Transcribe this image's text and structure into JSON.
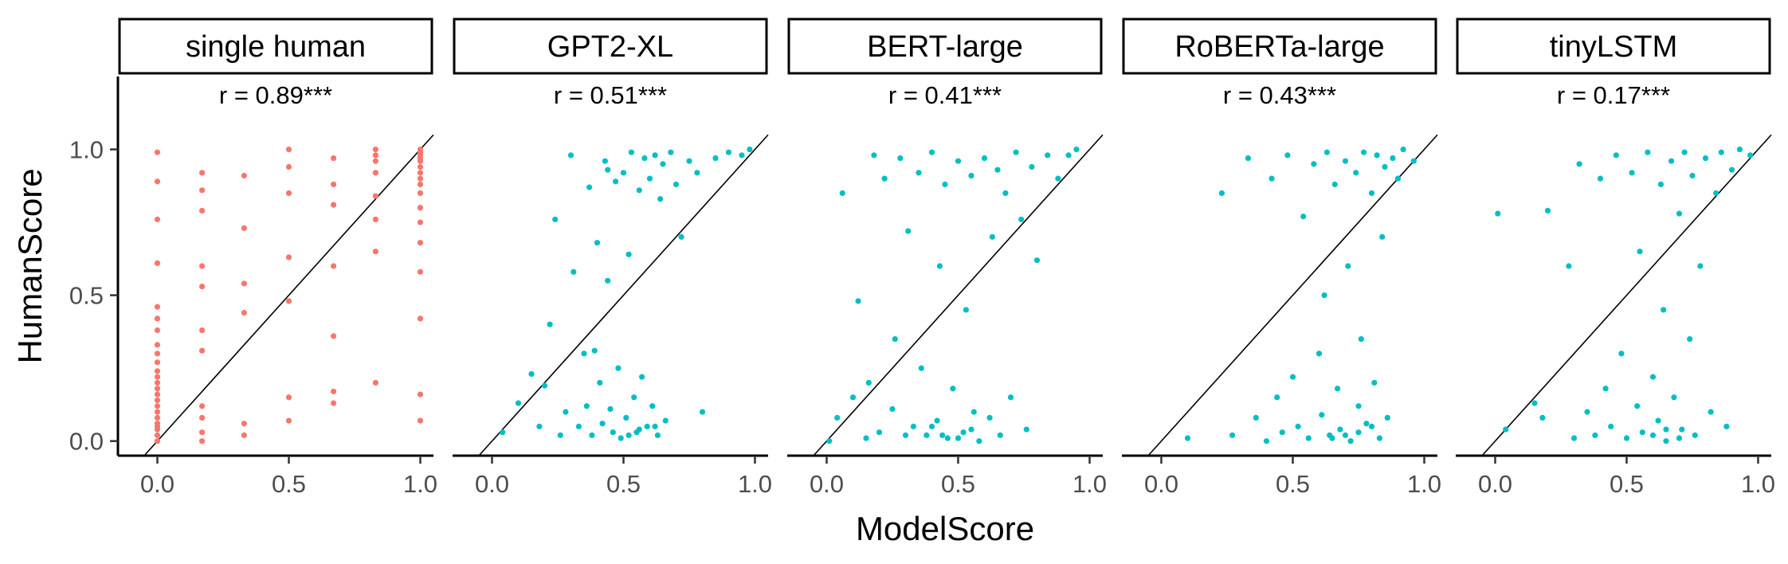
{
  "chart_data": {
    "type": "scatter",
    "layout": "facets",
    "xlabel": "ModelScore",
    "ylabel": "HumanScore",
    "xlim": [
      -0.15,
      1.05
    ],
    "ylim": [
      -0.05,
      1.25
    ],
    "x_ticks": [
      0.0,
      0.5,
      1.0
    ],
    "x_tick_labels": [
      "0.0",
      "0.5",
      "1.0"
    ],
    "y_ticks": [
      0.0,
      0.5,
      1.0
    ],
    "y_tick_labels": [
      "0.0",
      "0.5",
      "1.0"
    ],
    "reference_line": "y = x",
    "grid": false,
    "legend": "none",
    "panels": [
      {
        "label": "single human",
        "annotation": "r = 0.89***",
        "color": "#F8766D",
        "points": [
          [
            0.0,
            0.0
          ],
          [
            0.0,
            0.02
          ],
          [
            0.0,
            0.04
          ],
          [
            0.0,
            0.05
          ],
          [
            0.0,
            0.06
          ],
          [
            0.0,
            0.08
          ],
          [
            0.0,
            0.1
          ],
          [
            0.0,
            0.12
          ],
          [
            0.0,
            0.14
          ],
          [
            0.0,
            0.16
          ],
          [
            0.0,
            0.18
          ],
          [
            0.0,
            0.2
          ],
          [
            0.0,
            0.22
          ],
          [
            0.0,
            0.24
          ],
          [
            0.0,
            0.27
          ],
          [
            0.0,
            0.3
          ],
          [
            0.0,
            0.33
          ],
          [
            0.0,
            0.38
          ],
          [
            0.0,
            0.42
          ],
          [
            0.0,
            0.46
          ],
          [
            0.0,
            0.61
          ],
          [
            0.0,
            0.76
          ],
          [
            0.0,
            0.89
          ],
          [
            0.0,
            0.99
          ],
          [
            0.17,
            0.0
          ],
          [
            0.17,
            0.03
          ],
          [
            0.17,
            0.08
          ],
          [
            0.17,
            0.12
          ],
          [
            0.17,
            0.31
          ],
          [
            0.17,
            0.38
          ],
          [
            0.17,
            0.53
          ],
          [
            0.17,
            0.6
          ],
          [
            0.17,
            0.79
          ],
          [
            0.17,
            0.86
          ],
          [
            0.17,
            0.92
          ],
          [
            0.33,
            0.02
          ],
          [
            0.33,
            0.06
          ],
          [
            0.33,
            0.44
          ],
          [
            0.33,
            0.54
          ],
          [
            0.33,
            0.73
          ],
          [
            0.33,
            0.91
          ],
          [
            0.5,
            0.07
          ],
          [
            0.5,
            0.15
          ],
          [
            0.5,
            0.48
          ],
          [
            0.5,
            0.63
          ],
          [
            0.5,
            0.85
          ],
          [
            0.5,
            0.94
          ],
          [
            0.5,
            1.0
          ],
          [
            0.67,
            0.13
          ],
          [
            0.67,
            0.17
          ],
          [
            0.67,
            0.36
          ],
          [
            0.67,
            0.6
          ],
          [
            0.67,
            0.81
          ],
          [
            0.67,
            0.88
          ],
          [
            0.67,
            0.97
          ],
          [
            0.83,
            0.2
          ],
          [
            0.83,
            0.65
          ],
          [
            0.83,
            0.76
          ],
          [
            0.83,
            0.84
          ],
          [
            0.83,
            0.92
          ],
          [
            0.83,
            0.96
          ],
          [
            0.83,
            0.98
          ],
          [
            0.83,
            1.0
          ],
          [
            1.0,
            0.07
          ],
          [
            1.0,
            0.16
          ],
          [
            1.0,
            0.42
          ],
          [
            1.0,
            0.58
          ],
          [
            1.0,
            0.68
          ],
          [
            1.0,
            0.75
          ],
          [
            1.0,
            0.8
          ],
          [
            1.0,
            0.85
          ],
          [
            1.0,
            0.88
          ],
          [
            1.0,
            0.9
          ],
          [
            1.0,
            0.92
          ],
          [
            1.0,
            0.94
          ],
          [
            1.0,
            0.96
          ],
          [
            1.0,
            0.97
          ],
          [
            1.0,
            0.98
          ],
          [
            1.0,
            0.99
          ],
          [
            1.0,
            1.0
          ]
        ]
      },
      {
        "label": "GPT2-XL",
        "annotation": "r = 0.51***",
        "color": "#00BFC4",
        "points": [
          [
            0.04,
            0.03
          ],
          [
            0.1,
            0.13
          ],
          [
            0.15,
            0.23
          ],
          [
            0.18,
            0.05
          ],
          [
            0.2,
            0.19
          ],
          [
            0.22,
            0.4
          ],
          [
            0.24,
            0.76
          ],
          [
            0.26,
            0.02
          ],
          [
            0.28,
            0.1
          ],
          [
            0.3,
            0.98
          ],
          [
            0.31,
            0.58
          ],
          [
            0.33,
            0.05
          ],
          [
            0.35,
            0.3
          ],
          [
            0.36,
            0.12
          ],
          [
            0.37,
            0.87
          ],
          [
            0.38,
            0.02
          ],
          [
            0.39,
            0.31
          ],
          [
            0.4,
            0.68
          ],
          [
            0.41,
            0.2
          ],
          [
            0.42,
            0.06
          ],
          [
            0.43,
            0.96
          ],
          [
            0.44,
            0.55
          ],
          [
            0.45,
            0.11
          ],
          [
            0.46,
            0.03
          ],
          [
            0.47,
            0.89
          ],
          [
            0.48,
            0.25
          ],
          [
            0.49,
            0.01
          ],
          [
            0.5,
            0.92
          ],
          [
            0.51,
            0.08
          ],
          [
            0.52,
            0.64
          ],
          [
            0.53,
            0.99
          ],
          [
            0.54,
            0.15
          ],
          [
            0.55,
            0.03
          ],
          [
            0.56,
            0.86
          ],
          [
            0.57,
            0.22
          ],
          [
            0.58,
            0.97
          ],
          [
            0.59,
            0.05
          ],
          [
            0.6,
            0.9
          ],
          [
            0.61,
            0.12
          ],
          [
            0.62,
            0.98
          ],
          [
            0.63,
            0.02
          ],
          [
            0.64,
            0.83
          ],
          [
            0.65,
            0.95
          ],
          [
            0.66,
            0.07
          ],
          [
            0.68,
            0.99
          ],
          [
            0.7,
            0.88
          ],
          [
            0.72,
            0.7
          ],
          [
            0.75,
            0.96
          ],
          [
            0.78,
            0.92
          ],
          [
            0.8,
            0.1
          ],
          [
            0.85,
            0.97
          ],
          [
            0.9,
            0.99
          ],
          [
            0.95,
            0.98
          ],
          [
            0.98,
            1.0
          ],
          [
            0.44,
            0.93
          ],
          [
            0.52,
            0.02
          ],
          [
            0.56,
            0.04
          ],
          [
            0.62,
            0.05
          ]
        ]
      },
      {
        "label": "BERT-large",
        "annotation": "r = 0.41***",
        "color": "#00BFC4",
        "points": [
          [
            0.01,
            0.0
          ],
          [
            0.04,
            0.08
          ],
          [
            0.06,
            0.85
          ],
          [
            0.1,
            0.15
          ],
          [
            0.12,
            0.48
          ],
          [
            0.15,
            0.01
          ],
          [
            0.16,
            0.2
          ],
          [
            0.18,
            0.98
          ],
          [
            0.2,
            0.03
          ],
          [
            0.22,
            0.9
          ],
          [
            0.25,
            0.11
          ],
          [
            0.26,
            0.35
          ],
          [
            0.28,
            0.97
          ],
          [
            0.3,
            0.02
          ],
          [
            0.31,
            0.72
          ],
          [
            0.33,
            0.05
          ],
          [
            0.35,
            0.92
          ],
          [
            0.36,
            0.25
          ],
          [
            0.38,
            0.02
          ],
          [
            0.4,
            0.99
          ],
          [
            0.42,
            0.07
          ],
          [
            0.43,
            0.6
          ],
          [
            0.45,
            0.88
          ],
          [
            0.46,
            0.01
          ],
          [
            0.48,
            0.18
          ],
          [
            0.5,
            0.96
          ],
          [
            0.52,
            0.03
          ],
          [
            0.53,
            0.45
          ],
          [
            0.55,
            0.91
          ],
          [
            0.56,
            0.1
          ],
          [
            0.58,
            0.0
          ],
          [
            0.6,
            0.97
          ],
          [
            0.62,
            0.08
          ],
          [
            0.63,
            0.7
          ],
          [
            0.65,
            0.93
          ],
          [
            0.66,
            0.02
          ],
          [
            0.68,
            0.85
          ],
          [
            0.7,
            0.15
          ],
          [
            0.72,
            0.99
          ],
          [
            0.74,
            0.76
          ],
          [
            0.76,
            0.04
          ],
          [
            0.78,
            0.94
          ],
          [
            0.8,
            0.62
          ],
          [
            0.84,
            0.98
          ],
          [
            0.88,
            0.9
          ],
          [
            0.92,
            0.98
          ],
          [
            0.95,
            1.0
          ],
          [
            0.44,
            0.02
          ],
          [
            0.5,
            0.01
          ],
          [
            0.55,
            0.04
          ],
          [
            0.4,
            0.05
          ]
        ]
      },
      {
        "label": "RoBERTa-large",
        "annotation": "r = 0.43***",
        "color": "#00BFC4",
        "points": [
          [
            0.1,
            0.01
          ],
          [
            0.23,
            0.85
          ],
          [
            0.27,
            0.02
          ],
          [
            0.33,
            0.97
          ],
          [
            0.36,
            0.08
          ],
          [
            0.4,
            0.0
          ],
          [
            0.42,
            0.9
          ],
          [
            0.44,
            0.15
          ],
          [
            0.46,
            0.03
          ],
          [
            0.48,
            0.98
          ],
          [
            0.5,
            0.22
          ],
          [
            0.52,
            0.05
          ],
          [
            0.54,
            0.77
          ],
          [
            0.56,
            0.01
          ],
          [
            0.58,
            0.95
          ],
          [
            0.6,
            0.3
          ],
          [
            0.61,
            0.09
          ],
          [
            0.62,
            0.5
          ],
          [
            0.63,
            0.99
          ],
          [
            0.64,
            0.02
          ],
          [
            0.66,
            0.88
          ],
          [
            0.67,
            0.18
          ],
          [
            0.68,
            0.04
          ],
          [
            0.7,
            0.96
          ],
          [
            0.71,
            0.6
          ],
          [
            0.72,
            0.0
          ],
          [
            0.74,
            0.92
          ],
          [
            0.75,
            0.12
          ],
          [
            0.76,
            0.35
          ],
          [
            0.77,
            0.99
          ],
          [
            0.78,
            0.06
          ],
          [
            0.8,
            0.85
          ],
          [
            0.81,
            0.2
          ],
          [
            0.82,
            0.98
          ],
          [
            0.83,
            0.01
          ],
          [
            0.84,
            0.7
          ],
          [
            0.85,
            0.94
          ],
          [
            0.86,
            0.08
          ],
          [
            0.88,
            0.97
          ],
          [
            0.9,
            0.9
          ],
          [
            0.92,
            1.0
          ],
          [
            0.96,
            0.96
          ],
          [
            0.7,
            0.02
          ],
          [
            0.75,
            0.03
          ],
          [
            0.8,
            0.05
          ],
          [
            0.65,
            0.01
          ]
        ]
      },
      {
        "label": "tinyLSTM",
        "annotation": "r = 0.17***",
        "color": "#00BFC4",
        "points": [
          [
            0.01,
            0.78
          ],
          [
            0.04,
            0.04
          ],
          [
            0.15,
            0.13
          ],
          [
            0.18,
            0.08
          ],
          [
            0.2,
            0.79
          ],
          [
            0.28,
            0.6
          ],
          [
            0.3,
            0.01
          ],
          [
            0.32,
            0.95
          ],
          [
            0.35,
            0.1
          ],
          [
            0.38,
            0.02
          ],
          [
            0.4,
            0.9
          ],
          [
            0.42,
            0.18
          ],
          [
            0.44,
            0.05
          ],
          [
            0.46,
            0.98
          ],
          [
            0.48,
            0.3
          ],
          [
            0.5,
            0.01
          ],
          [
            0.52,
            0.92
          ],
          [
            0.54,
            0.12
          ],
          [
            0.55,
            0.65
          ],
          [
            0.56,
            0.03
          ],
          [
            0.58,
            0.99
          ],
          [
            0.6,
            0.22
          ],
          [
            0.62,
            0.07
          ],
          [
            0.63,
            0.88
          ],
          [
            0.64,
            0.45
          ],
          [
            0.65,
            0.0
          ],
          [
            0.67,
            0.96
          ],
          [
            0.68,
            0.15
          ],
          [
            0.7,
            0.78
          ],
          [
            0.71,
            0.04
          ],
          [
            0.72,
            0.99
          ],
          [
            0.74,
            0.35
          ],
          [
            0.75,
            0.91
          ],
          [
            0.76,
            0.02
          ],
          [
            0.78,
            0.6
          ],
          [
            0.8,
            0.97
          ],
          [
            0.82,
            0.1
          ],
          [
            0.84,
            0.85
          ],
          [
            0.86,
            0.99
          ],
          [
            0.88,
            0.05
          ],
          [
            0.9,
            0.93
          ],
          [
            0.93,
            1.0
          ],
          [
            0.97,
            0.98
          ],
          [
            0.6,
            0.02
          ],
          [
            0.65,
            0.04
          ],
          [
            0.7,
            0.01
          ]
        ]
      }
    ]
  }
}
